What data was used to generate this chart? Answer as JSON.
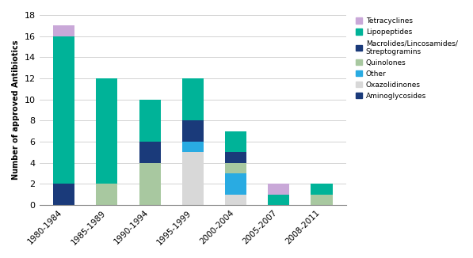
{
  "categories": [
    "1980-1984",
    "1985-1989",
    "1990-1994",
    "1995-1999",
    "2000-2004",
    "2005-2007",
    "2008-2011"
  ],
  "series": {
    "Aminoglycosides": [
      0,
      0,
      0,
      0,
      0,
      0,
      0
    ],
    "Oxazolidinones": [
      0,
      0,
      0,
      5,
      1,
      0,
      0
    ],
    "Other": [
      0,
      0,
      0,
      1,
      2,
      0,
      0
    ],
    "Quinolones": [
      0,
      2,
      4,
      0,
      1,
      0,
      1
    ],
    "Macrolides": [
      2,
      0,
      2,
      2,
      1,
      0,
      0
    ],
    "Lipopeptides": [
      14,
      10,
      4,
      4,
      2,
      1,
      1
    ],
    "Tetracyclines": [
      1,
      0,
      0,
      0,
      0,
      1,
      0
    ]
  },
  "colors": {
    "Aminoglycosides": "#1a3a7a",
    "Oxazolidinones": "#d8d8d8",
    "Other": "#29abe2",
    "Quinolones": "#a8c8a0",
    "Macrolides": "#1a3a7a",
    "Lipopeptides": "#00b398",
    "Tetracyclines": "#c9a8d8"
  },
  "legend_colors": {
    "Tetracyclines": "#c9a8d8",
    "Lipopeptides": "#00b398",
    "Macrolides/Lincosamides/\nStreptogramins": "#1a3a7a",
    "Quinolones": "#a8c8a0",
    "Other": "#29abe2",
    "Oxazolidinones": "#d8d8d8",
    "Aminoglycosides": "#1a3a7a"
  },
  "ylabel": "Number of approved Antibiotics",
  "ylim": [
    0,
    18
  ],
  "yticks": [
    0,
    2,
    4,
    6,
    8,
    10,
    12,
    14,
    16,
    18
  ],
  "background_color": "#ffffff",
  "stack_order": [
    "Aminoglycosides",
    "Oxazolidinones",
    "Other",
    "Quinolones",
    "Macrolides",
    "Lipopeptides",
    "Tetracyclines"
  ],
  "legend_order": [
    "Tetracyclines",
    "Lipopeptides",
    "Macrolides/Lincosamides/\nStreptogramins",
    "Quinolones",
    "Other",
    "Oxazolidinones",
    "Aminoglycosides"
  ]
}
